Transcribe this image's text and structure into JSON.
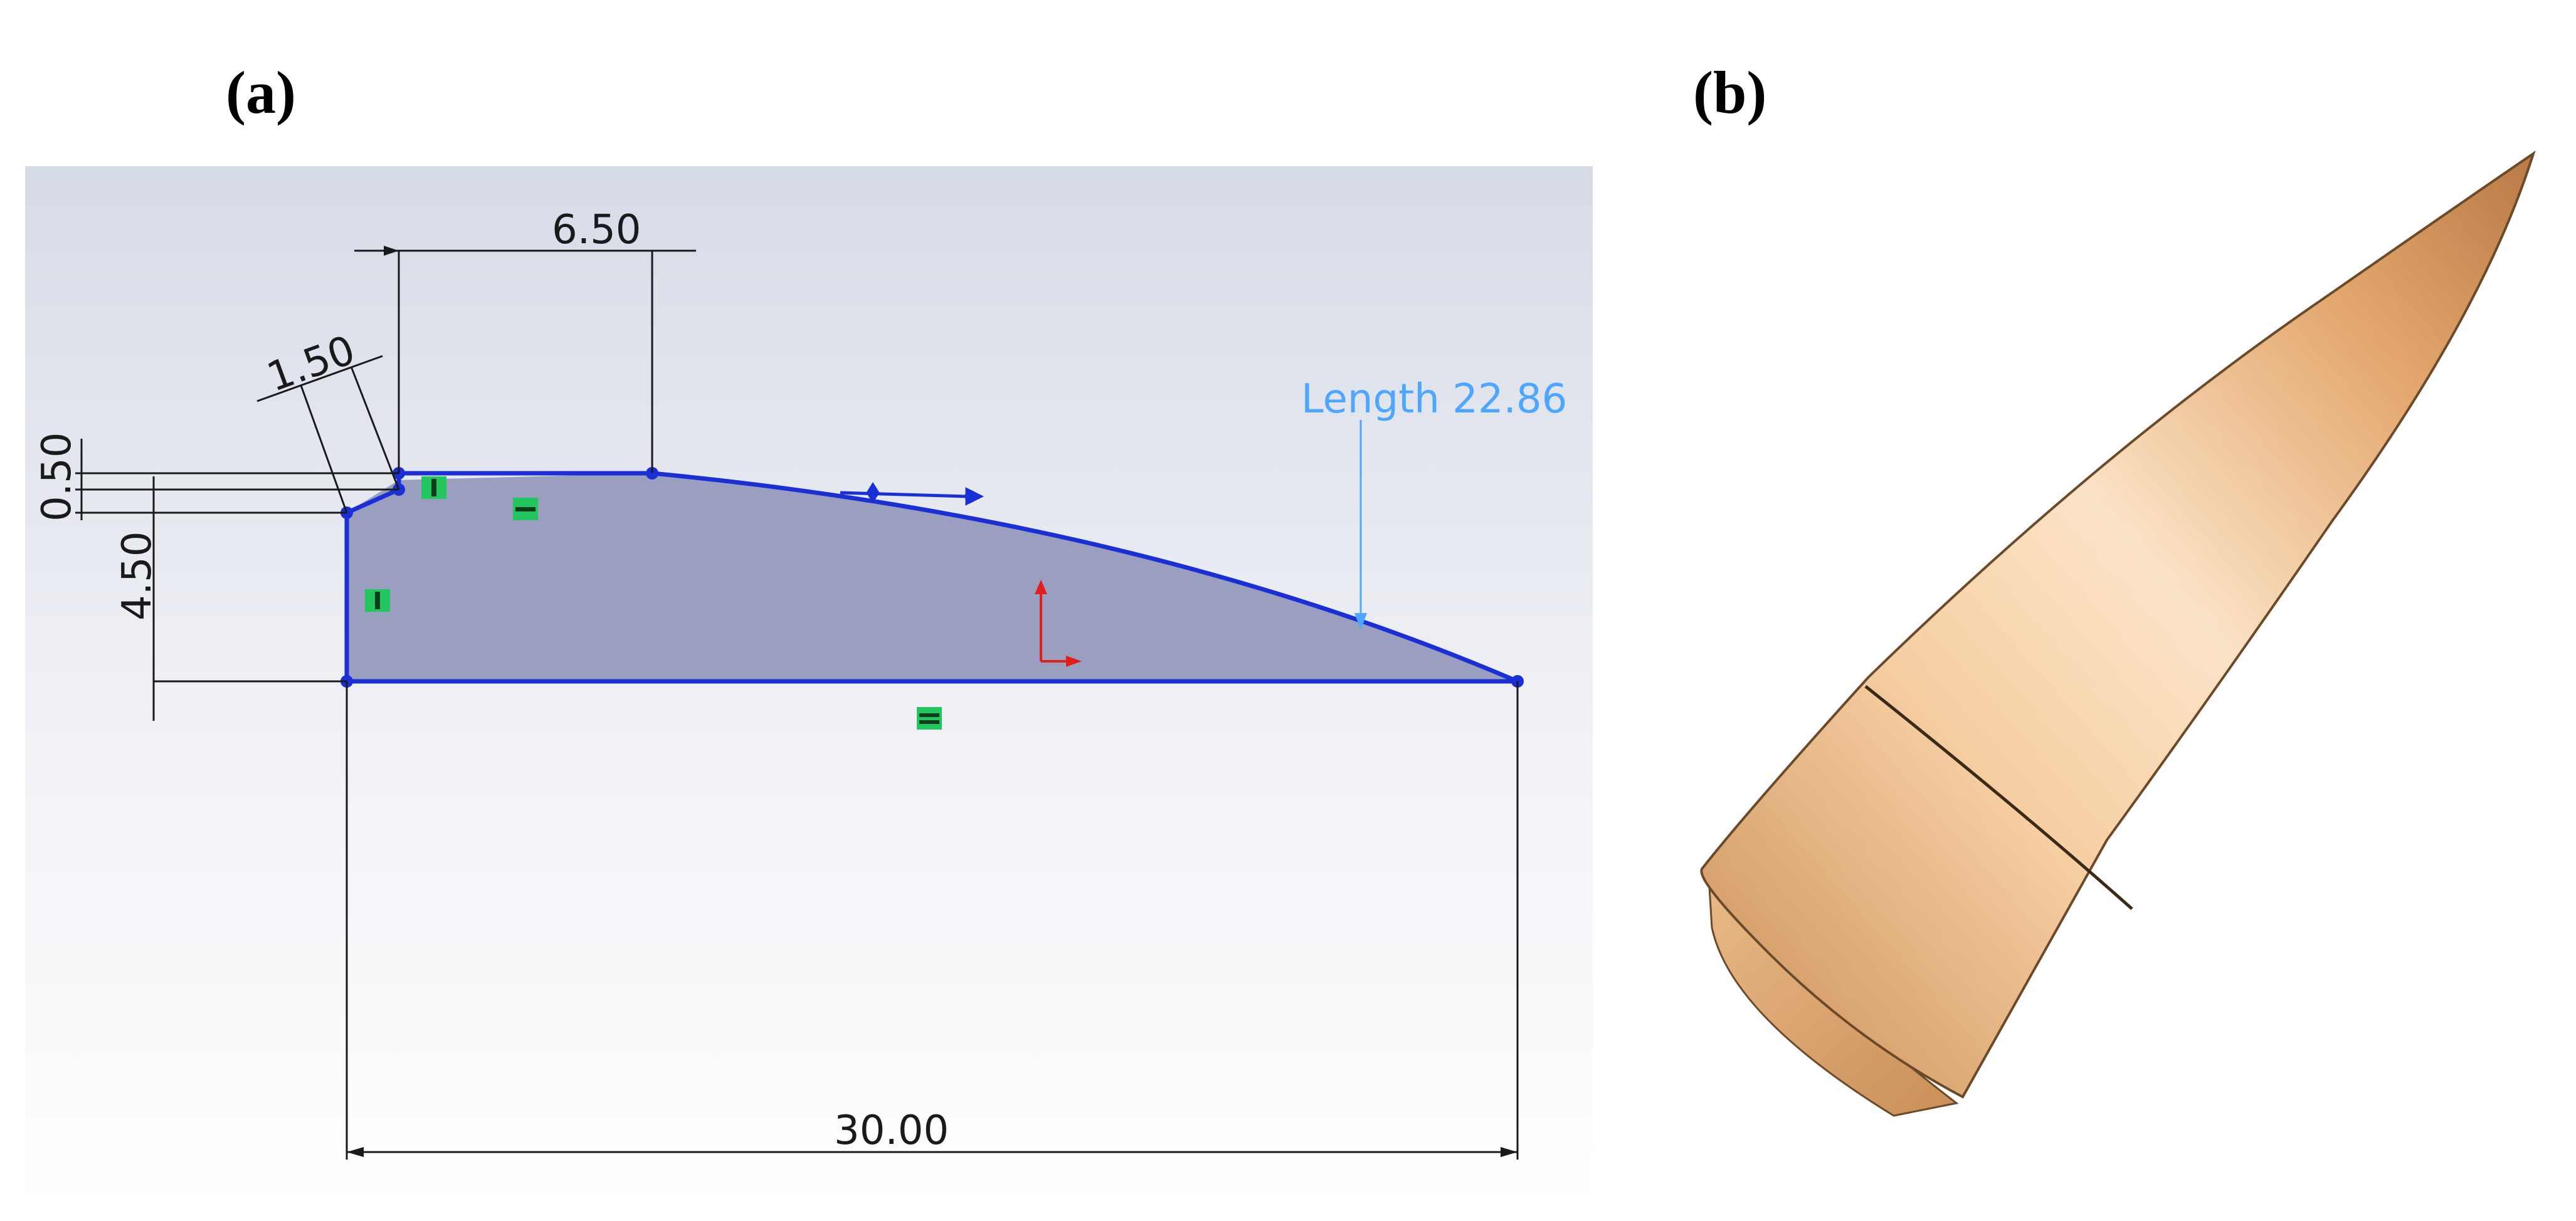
{
  "panels": {
    "a_label": "(a)",
    "b_label": "(b)"
  },
  "sketch": {
    "dimensions": {
      "top_length": "6.50",
      "chamfer": "1.50",
      "small_height": "0.50",
      "height": "4.50",
      "total_length": "30.00"
    },
    "length_callout": "Length 22.86"
  },
  "colors": {
    "profile_line": "#1a2fd6",
    "profile_fill": "#9a9fbf",
    "dimension_line": "#1a1a1a",
    "length_callout": "#4da6ff",
    "relation_badge": "#22c55e",
    "origin_axis": "#e11d1d",
    "bullet_body": "#e9b37a"
  }
}
